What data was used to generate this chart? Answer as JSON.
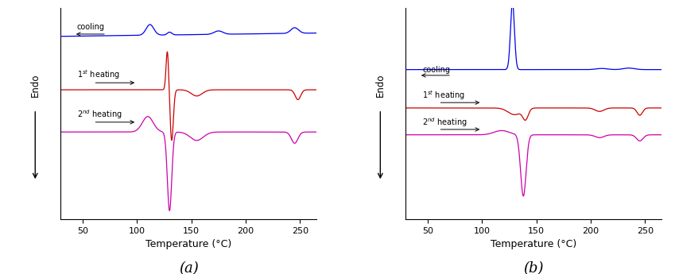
{
  "xlim": [
    30,
    265
  ],
  "xticks": [
    50,
    100,
    150,
    200,
    250
  ],
  "xlabel": "Temperature (°C)",
  "colors": {
    "cooling": "#0000EE",
    "first_heating": "#CC0000",
    "second_heating": "#CC00AA"
  },
  "offsets_a": {
    "cooling": 2.5,
    "first_heating": 0.6,
    "second_heating": -0.9
  },
  "offsets_b": {
    "cooling": 2.3,
    "first_heating": 0.3,
    "second_heating": -1.1
  },
  "ylim_a": [
    -4.0,
    3.5
  ],
  "ylim_b": [
    -5.5,
    5.5
  ],
  "subplot_labels": [
    "(a)",
    "(b)"
  ],
  "background_color": "#ffffff"
}
